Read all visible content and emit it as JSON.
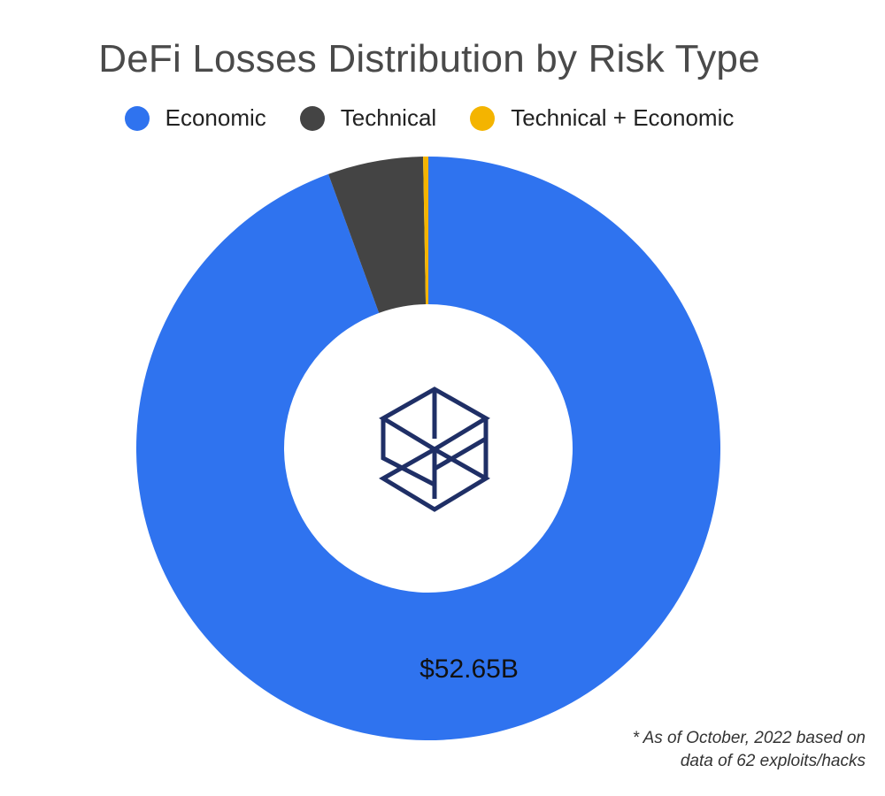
{
  "chart_data": {
    "type": "pie",
    "title": "DeFi Losses Distribution by Risk Type",
    "donut": true,
    "legend_position": "top",
    "slices": [
      {
        "label": "Economic",
        "value": 52.65,
        "color": "#2f73ef"
      },
      {
        "label": "Technical",
        "value": 2.94,
        "color": "#444444"
      },
      {
        "label": "Technical + Economic",
        "value": 0.16,
        "color": "#f4b400"
      }
    ],
    "data_labels": [
      "$52.65B"
    ]
  },
  "footnote": {
    "line1": "* As of October, 2022 based on",
    "line2": "data of 62 exploits/hacks"
  },
  "center_logo": "cube-logo-icon"
}
